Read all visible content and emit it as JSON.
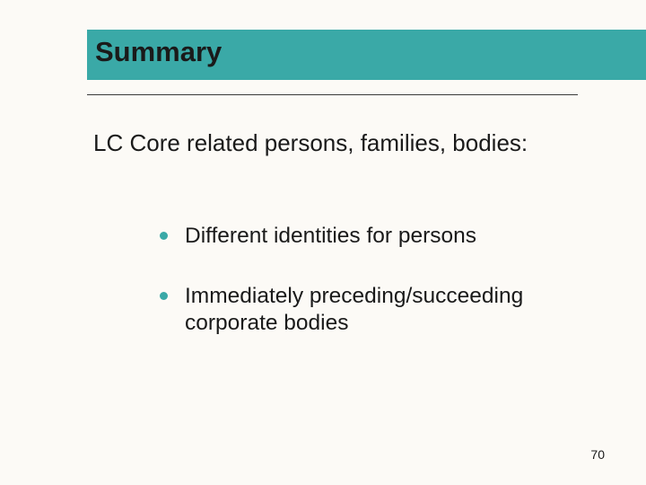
{
  "slide": {
    "title": "Summary",
    "main_text": "LC Core related persons, families, bodies:",
    "bullets": [
      "Different identities for persons",
      "Immediately preceding/succeeding corporate bodies"
    ],
    "page_number": "70",
    "colors": {
      "band": "#3aa9a7",
      "bullet": "#3aa9a7",
      "background": "#fcfaf6",
      "text": "#1a1a1a"
    },
    "fonts": {
      "title_size": 31,
      "body_size": 26,
      "bullet_size": 24.5,
      "page_size": 14
    }
  }
}
